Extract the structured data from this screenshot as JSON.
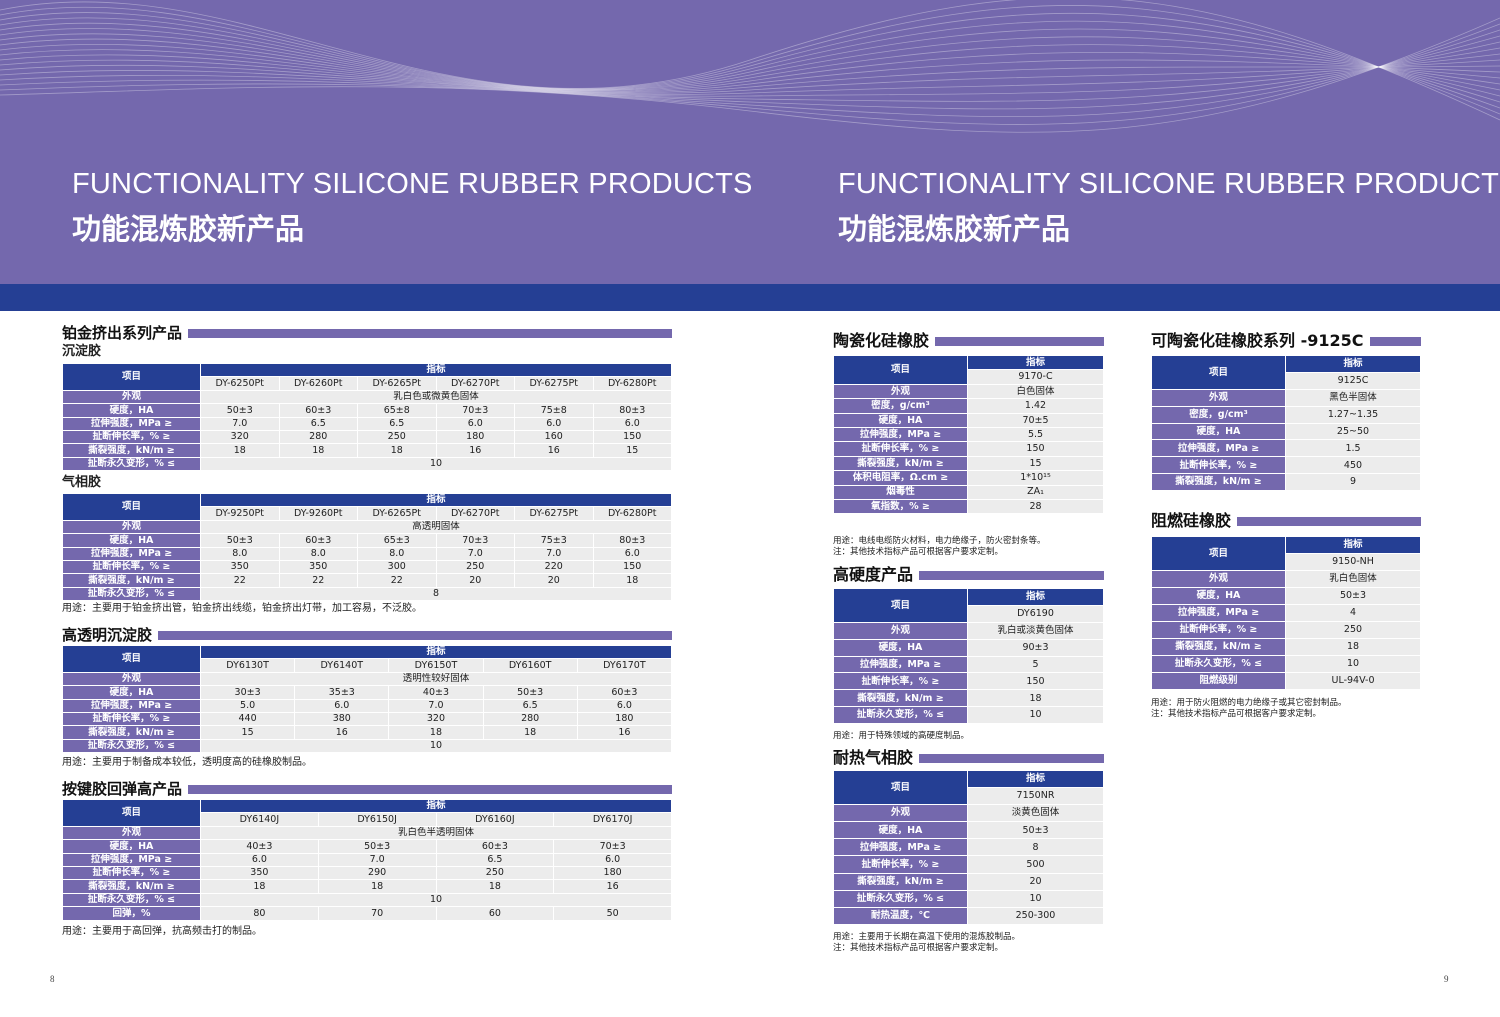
{
  "header": {
    "title_en": "FUNCTIONALITY SILICONE RUBBER PRODUCTS",
    "title_cn": "功能混炼胶新产品"
  },
  "colors": {
    "header_bg": "#7468ad",
    "band": "#253f94",
    "label_cell": "#7468ad",
    "header_cell": "#253f94",
    "value_cell": "#ececec"
  },
  "page_numbers": {
    "left": "8",
    "right": "9"
  },
  "blocks": [
    {
      "title": "铂金挤出系列产品",
      "subtitle": "沉淀胶",
      "table": {
        "index_label": "项目",
        "spec_label": "指标",
        "models": [
          "DY-6250Pt",
          "DY-6260Pt",
          "DY-6265Pt",
          "DY-6270Pt",
          "DY-6275Pt",
          "DY-6280Pt"
        ],
        "rows": [
          {
            "label": "外观",
            "value": "乳白色或微黄色固体"
          },
          {
            "label": "硬度，HA",
            "values": [
              "50±3",
              "60±3",
              "65±8",
              "70±3",
              "75±8",
              "80±3"
            ]
          },
          {
            "label": "拉伸强度，MPa ≥",
            "values": [
              "7.0",
              "6.5",
              "6.5",
              "6.0",
              "6.0",
              "6.0"
            ]
          },
          {
            "label": "扯断伸长率，% ≥",
            "values": [
              "320",
              "280",
              "250",
              "180",
              "160",
              "150"
            ]
          },
          {
            "label": "撕裂强度，kN/m ≥",
            "values": [
              "18",
              "18",
              "18",
              "16",
              "16",
              "15"
            ]
          },
          {
            "label": "扯断永久变形，% ≤",
            "value": "10"
          }
        ]
      }
    },
    {
      "subtitle": "气相胶",
      "table": {
        "index_label": "项目",
        "spec_label": "指标",
        "models": [
          "DY-9250Pt",
          "DY-9260Pt",
          "DY-6265Pt",
          "DY-6270Pt",
          "DY-6275Pt",
          "DY-6280Pt"
        ],
        "rows": [
          {
            "label": "外观",
            "value": "高透明固体"
          },
          {
            "label": "硬度，HA",
            "values": [
              "50±3",
              "60±3",
              "65±3",
              "70±3",
              "75±3",
              "80±3"
            ]
          },
          {
            "label": "拉伸强度，MPa ≥",
            "values": [
              "8.0",
              "8.0",
              "8.0",
              "7.0",
              "7.0",
              "6.0"
            ]
          },
          {
            "label": "扯断伸长率，% ≥",
            "values": [
              "350",
              "350",
              "300",
              "250",
              "220",
              "150"
            ]
          },
          {
            "label": "撕裂强度，kN/m ≥",
            "values": [
              "22",
              "22",
              "22",
              "20",
              "20",
              "18"
            ]
          },
          {
            "label": "扯断永久变形，% ≤",
            "value": "8"
          }
        ]
      },
      "notes": [
        "用途：主要用于铂金挤出管，铂金挤出线缆，铂金挤出灯带，加工容易，不泛胶。"
      ]
    },
    {
      "title": "高透明沉淀胶",
      "table": {
        "index_label": "项目",
        "spec_label": "指标",
        "models": [
          "DY6130T",
          "DY6140T",
          "DY6150T",
          "DY6160T",
          "DY6170T"
        ],
        "rows": [
          {
            "label": "外观",
            "value": "透明性较好固体"
          },
          {
            "label": "硬度，HA",
            "values": [
              "30±3",
              "35±3",
              "40±3",
              "50±3",
              "60±3"
            ]
          },
          {
            "label": "拉伸强度，MPa ≥",
            "values": [
              "5.0",
              "6.0",
              "7.0",
              "6.5",
              "6.0"
            ]
          },
          {
            "label": "扯断伸长率，% ≥",
            "values": [
              "440",
              "380",
              "320",
              "280",
              "180"
            ]
          },
          {
            "label": "撕裂强度，kN/m ≥",
            "values": [
              "15",
              "16",
              "18",
              "18",
              "16"
            ]
          },
          {
            "label": "扯断永久变形，% ≤",
            "value": "10"
          }
        ]
      },
      "notes": [
        "用途：主要用于制备成本较低，透明度高的硅橡胶制品。"
      ]
    },
    {
      "title": "按键胶回弹高产品",
      "table": {
        "index_label": "项目",
        "spec_label": "指标",
        "models": [
          "DY6140J",
          "DY6150J",
          "DY6160J",
          "DY6170J"
        ],
        "rows": [
          {
            "label": "外观",
            "value": "乳白色半透明固体"
          },
          {
            "label": "硬度，HA",
            "values": [
              "40±3",
              "50±3",
              "60±3",
              "70±3"
            ]
          },
          {
            "label": "拉伸强度，MPa ≥",
            "values": [
              "6.0",
              "7.0",
              "6.5",
              "6.0"
            ]
          },
          {
            "label": "扯断伸长率，% ≥",
            "values": [
              "350",
              "290",
              "250",
              "180"
            ]
          },
          {
            "label": "撕裂强度，kN/m ≥",
            "values": [
              "18",
              "18",
              "18",
              "16"
            ]
          },
          {
            "label": "扯断永久变形，% ≤",
            "value": "10"
          },
          {
            "label": "回弹，%",
            "values": [
              "80",
              "70",
              "60",
              "50"
            ]
          }
        ]
      },
      "notes": [
        "用途：主要用于高回弹，抗高频击打的制品。"
      ]
    },
    {
      "title": "陶瓷化硅橡胶",
      "table": {
        "index_label": "项目",
        "spec_label": "指标",
        "models": [
          "9170-C"
        ],
        "rows": [
          {
            "label": "外观",
            "values": [
              "白色固体"
            ]
          },
          {
            "label": "密度，g/cm³",
            "values": [
              "1.42"
            ]
          },
          {
            "label": "硬度，HA",
            "values": [
              "70±5"
            ]
          },
          {
            "label": "拉伸强度，MPa ≥",
            "values": [
              "5.5"
            ]
          },
          {
            "label": "扯断伸长率，% ≥",
            "values": [
              "150"
            ]
          },
          {
            "label": "撕裂强度，kN/m ≥",
            "values": [
              "15"
            ]
          },
          {
            "label": "体积电阻率，Ω.cm ≥",
            "values": [
              "1*10¹⁵"
            ]
          },
          {
            "label": "烟毒性",
            "values": [
              "ZA₁"
            ]
          },
          {
            "label": "氧指数，% ≥",
            "values": [
              "28"
            ]
          }
        ]
      },
      "notes": [
        "用途：电线电缆防火材料，电力绝缘子，防火密封条等。",
        "注：其他技术指标产品可根据客户要求定制。"
      ]
    },
    {
      "title": "高硬度产品",
      "table": {
        "index_label": "项目",
        "spec_label": "指标",
        "models": [
          "DY6190"
        ],
        "rows": [
          {
            "label": "外观",
            "values": [
              "乳白或淡黄色固体"
            ]
          },
          {
            "label": "硬度，HA",
            "values": [
              "90±3"
            ]
          },
          {
            "label": "拉伸强度，MPa ≥",
            "values": [
              "5"
            ]
          },
          {
            "label": "扯断伸长率，% ≥",
            "values": [
              "150"
            ]
          },
          {
            "label": "撕裂强度，kN/m ≥",
            "values": [
              "18"
            ]
          },
          {
            "label": "扯断永久变形，% ≤",
            "values": [
              "10"
            ]
          }
        ]
      },
      "notes": [
        "用途：用于特殊领域的高硬度制品。"
      ]
    },
    {
      "title": "耐热气相胶",
      "table": {
        "index_label": "项目",
        "spec_label": "指标",
        "models": [
          "7150NR"
        ],
        "rows": [
          {
            "label": "外观",
            "values": [
              "淡黄色固体"
            ]
          },
          {
            "label": "硬度，HA",
            "values": [
              "50±3"
            ]
          },
          {
            "label": "拉伸强度，MPa ≥",
            "values": [
              "8"
            ]
          },
          {
            "label": "扯断伸长率，% ≥",
            "values": [
              "500"
            ]
          },
          {
            "label": "撕裂强度，kN/m ≥",
            "values": [
              "20"
            ]
          },
          {
            "label": "扯断永久变形，% ≤",
            "values": [
              "10"
            ]
          },
          {
            "label": "耐热温度，℃",
            "values": [
              "250-300"
            ]
          }
        ]
      },
      "notes": [
        "用途：主要用于长期在高温下使用的混炼胶制品。",
        "注：其他技术指标产品可根据客户要求定制。"
      ]
    },
    {
      "title": "可陶瓷化硅橡胶系列 -9125C",
      "table": {
        "index_label": "项目",
        "spec_label": "指标",
        "models": [
          "9125C"
        ],
        "rows": [
          {
            "label": "外观",
            "values": [
              "黑色半固体"
            ]
          },
          {
            "label": "密度，g/cm³",
            "values": [
              "1.27~1.35"
            ]
          },
          {
            "label": "硬度，HA",
            "values": [
              "25~50"
            ]
          },
          {
            "label": "拉伸强度，MPa ≥",
            "values": [
              "1.5"
            ]
          },
          {
            "label": "扯断伸长率，% ≥",
            "values": [
              "450"
            ]
          },
          {
            "label": "撕裂强度，kN/m ≥",
            "values": [
              "9"
            ]
          }
        ]
      }
    },
    {
      "title": "阻燃硅橡胶",
      "table": {
        "index_label": "项目",
        "spec_label": "指标",
        "models": [
          "9150-NH"
        ],
        "rows": [
          {
            "label": "外观",
            "values": [
              "乳白色固体"
            ]
          },
          {
            "label": "硬度，HA",
            "values": [
              "50±3"
            ]
          },
          {
            "label": "拉伸强度，MPa ≥",
            "values": [
              "4"
            ]
          },
          {
            "label": "扯断伸长率，% ≥",
            "values": [
              "250"
            ]
          },
          {
            "label": "撕裂强度，kN/m ≥",
            "values": [
              "18"
            ]
          },
          {
            "label": "扯断永久变形，% ≤",
            "values": [
              "10"
            ]
          },
          {
            "label": "阻燃级别",
            "values": [
              "UL-94V-0"
            ]
          }
        ]
      },
      "notes": [
        "用途：用于防火阻燃的电力绝缘子或其它密封制品。",
        "注：其他技术指标产品可根据客户要求定制。"
      ]
    }
  ]
}
